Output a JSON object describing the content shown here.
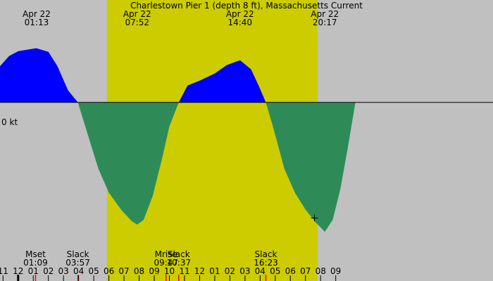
{
  "chart_data": {
    "type": "area",
    "title": "Charlestown Pier 1 (depth 8 ft), Massachusetts Current",
    "zero_label": "0 kt",
    "colors": {
      "background": "#c0c0c0",
      "daylight": "#cccc00",
      "flood": "#0000ff",
      "ebb": "#2e8b57"
    },
    "x_unit": "hour",
    "x_range": [
      -1.2,
      31.4
    ],
    "y_range": [
      -2.15,
      1.0
    ],
    "daylight": [
      5.87,
      19.8
    ],
    "series": [
      {
        "points": [
          [
            -1.2,
            0.6
          ],
          [
            -0.6,
            0.77
          ],
          [
            0.0,
            0.85
          ],
          [
            1.2,
            0.9
          ],
          [
            2.0,
            0.84
          ],
          [
            2.6,
            0.6
          ],
          [
            3.3,
            0.2
          ],
          [
            3.95,
            0.0
          ],
          [
            4.5,
            -0.45
          ],
          [
            5.3,
            -1.1
          ],
          [
            6.0,
            -1.5
          ],
          [
            6.8,
            -1.78
          ],
          [
            7.5,
            -1.97
          ],
          [
            7.87,
            -2.03
          ],
          [
            8.3,
            -1.95
          ],
          [
            8.9,
            -1.55
          ],
          [
            9.5,
            -0.95
          ],
          [
            10.0,
            -0.4
          ],
          [
            10.62,
            0.0
          ],
          [
            11.2,
            0.28
          ],
          [
            12.0,
            0.36
          ],
          [
            13.0,
            0.48
          ],
          [
            13.8,
            0.62
          ],
          [
            14.67,
            0.7
          ],
          [
            15.4,
            0.55
          ],
          [
            15.9,
            0.28
          ],
          [
            16.38,
            0.0
          ],
          [
            16.9,
            -0.45
          ],
          [
            17.6,
            -1.1
          ],
          [
            18.3,
            -1.5
          ],
          [
            19.0,
            -1.78
          ],
          [
            19.7,
            -2.0
          ],
          [
            20.28,
            -2.15
          ],
          [
            20.8,
            -1.95
          ],
          [
            21.3,
            -1.45
          ],
          [
            21.8,
            -0.75
          ],
          [
            22.3,
            0.0
          ]
        ]
      }
    ],
    "top_labels": [
      {
        "x": 1.22,
        "date": "Apr 22",
        "time": "01:13"
      },
      {
        "x": 7.87,
        "date": "Apr 22",
        "time": "07:52"
      },
      {
        "x": 14.67,
        "date": "Apr 22",
        "time": "14:40"
      },
      {
        "x": 20.28,
        "date": "Apr 22",
        "time": "20:17"
      }
    ],
    "events": [
      {
        "x": 1.15,
        "name": "Mset",
        "time": "01:09",
        "tick": "red"
      },
      {
        "x": 3.95,
        "name": "Slack",
        "time": "03:57",
        "tick": "red"
      },
      {
        "x": 9.78,
        "name": "Mrise",
        "time": "09:47",
        "tick": "red"
      },
      {
        "x": 10.62,
        "name": "Slack",
        "time": "10:37",
        "tick": "red"
      },
      {
        "x": 16.38,
        "name": "Slack",
        "time": "16:23",
        "tick": "red"
      }
    ],
    "x_ticks": [
      "11",
      "12",
      "01",
      "02",
      "03",
      "04",
      "05",
      "06",
      "07",
      "08",
      "09",
      "10",
      "11",
      "12",
      "01",
      "02",
      "03",
      "04",
      "05",
      "06",
      "07",
      "08",
      "09"
    ],
    "x_tick_start": -1,
    "midnight_tick": 0,
    "marker": {
      "x": 19.6,
      "y": -1.92
    }
  }
}
